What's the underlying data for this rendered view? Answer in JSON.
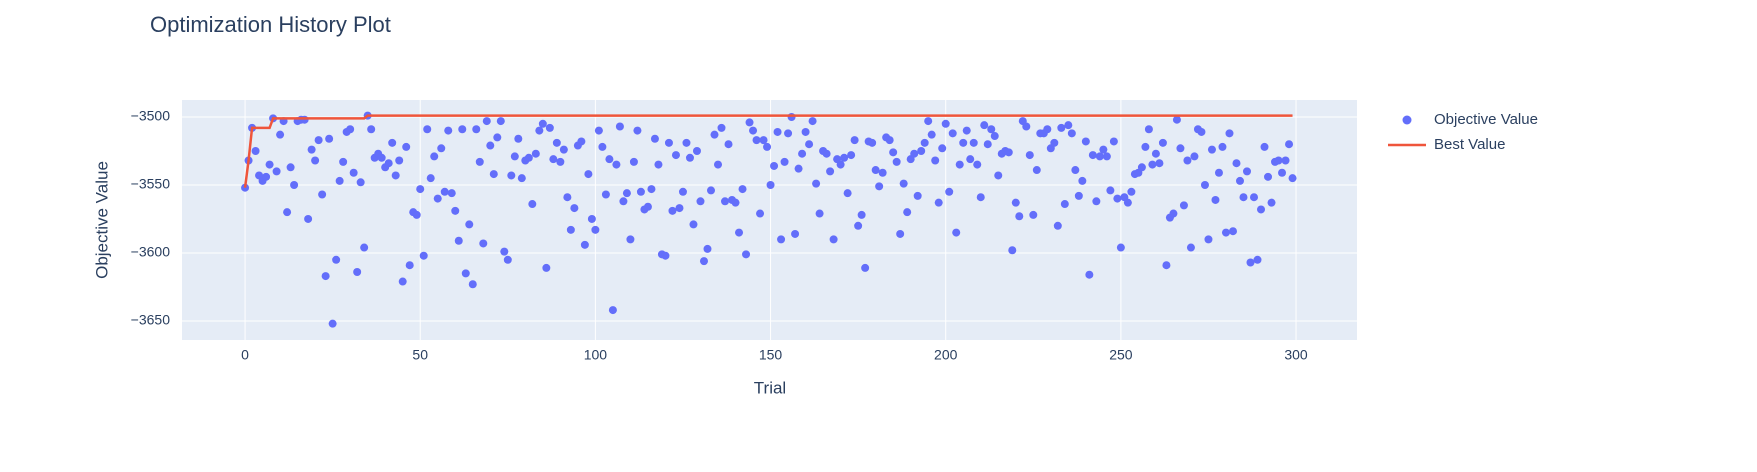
{
  "chart_data": {
    "type": "scatter",
    "title": "Optimization History Plot",
    "x_label": "Trial",
    "y_label": "Objective Value",
    "xlim": [
      -18,
      317.4
    ],
    "xticks": [
      0,
      50,
      100,
      150,
      200,
      250,
      300
    ],
    "ylim": [
      -3664,
      -3487.5
    ],
    "yticks": [
      {
        "value": -3650,
        "label": "−3650"
      },
      {
        "value": -3600,
        "label": "−3600"
      },
      {
        "value": -3550,
        "label": "−3550"
      },
      {
        "value": -3500,
        "label": "−3500"
      }
    ],
    "grid": true,
    "background": "#e5ecf6",
    "legend": "right",
    "series": [
      {
        "name": "Objective Value",
        "color": "#636efa",
        "mode": "markers",
        "x": [
          0,
          1,
          2,
          3,
          4,
          5,
          6,
          7,
          8,
          9,
          10,
          11,
          12,
          13,
          14,
          15,
          16,
          17,
          18,
          19,
          20,
          21,
          22,
          23,
          24,
          25,
          26,
          27,
          28,
          29,
          30,
          31,
          32,
          33,
          34,
          35,
          36,
          37,
          38,
          39,
          40,
          41,
          42,
          43,
          44,
          45,
          46,
          47,
          48,
          49,
          50,
          51,
          52,
          53,
          54,
          55,
          56,
          57,
          58,
          59,
          60,
          61,
          62,
          63,
          64,
          65,
          66,
          67,
          68,
          69,
          70,
          71,
          72,
          73,
          74,
          75,
          76,
          77,
          78,
          79,
          80,
          81,
          82,
          83,
          84,
          85,
          86,
          87,
          88,
          89,
          90,
          91,
          92,
          93,
          94,
          95,
          96,
          97,
          98,
          99,
          100,
          101,
          102,
          103,
          104,
          105,
          106,
          107,
          108,
          109,
          110,
          111,
          112,
          113,
          114,
          115,
          116,
          117,
          118,
          119,
          120,
          121,
          122,
          123,
          124,
          125,
          126,
          127,
          128,
          129,
          130,
          131,
          132,
          133,
          134,
          135,
          136,
          137,
          138,
          139,
          140,
          141,
          142,
          143,
          144,
          145,
          146,
          147,
          148,
          149,
          150,
          151,
          152,
          153,
          154,
          155,
          156,
          157,
          158,
          159,
          160,
          161,
          162,
          163,
          164,
          165,
          166,
          167,
          168,
          169,
          170,
          171,
          172,
          173,
          174,
          175,
          176,
          177,
          178,
          179,
          180,
          181,
          182,
          183,
          184,
          185,
          186,
          187,
          188,
          189,
          190,
          191,
          192,
          193,
          194,
          195,
          196,
          197,
          198,
          199,
          200,
          201,
          202,
          203,
          204,
          205,
          206,
          207,
          208,
          209,
          210,
          211,
          212,
          213,
          214,
          215,
          216,
          217,
          218,
          219,
          220,
          221,
          222,
          223,
          224,
          225,
          226,
          227,
          228,
          229,
          230,
          231,
          232,
          233,
          234,
          235,
          236,
          237,
          238,
          239,
          240,
          241,
          242,
          243,
          244,
          245,
          246,
          247,
          248,
          249,
          250,
          251,
          252,
          253,
          254,
          255,
          256,
          257,
          258,
          259,
          260,
          261,
          262,
          263,
          264,
          265,
          266,
          267,
          268,
          269,
          270,
          271,
          272,
          273,
          274,
          275,
          276,
          277,
          278,
          279,
          280,
          281,
          282,
          283,
          284,
          285,
          286,
          287,
          288,
          289,
          290,
          291,
          292,
          293,
          294,
          295,
          296,
          297,
          298,
          299
        ],
        "values": [
          -3552,
          -3532,
          -3508,
          -3525,
          -3543,
          -3547,
          -3544,
          -3535,
          -3501,
          -3540,
          -3513,
          -3503,
          -3570,
          -3537,
          -3550,
          -3503,
          -3502,
          -3502,
          -3575,
          -3524,
          -3532,
          -3517,
          -3557,
          -3617,
          -3516,
          -3652,
          -3605,
          -3547,
          -3533,
          -3511,
          -3509,
          -3541,
          -3614,
          -3548,
          -3596,
          -3499,
          -3509,
          -3530,
          -3527,
          -3530,
          -3537,
          -3534,
          -3519,
          -3543,
          -3532,
          -3621,
          -3522,
          -3609,
          -3570,
          -3572,
          -3553,
          -3602,
          -3509,
          -3545,
          -3529,
          -3560,
          -3523,
          -3555,
          -3510,
          -3556,
          -3569,
          -3591,
          -3509,
          -3615,
          -3579,
          -3623,
          -3509,
          -3533,
          -3593,
          -3503,
          -3521,
          -3542,
          -3515,
          -3503,
          -3599,
          -3605,
          -3543,
          -3529,
          -3516,
          -3545,
          -3532,
          -3530,
          -3564,
          -3527,
          -3510,
          -3505,
          -3611,
          -3508,
          -3531,
          -3519,
          -3533,
          -3524,
          -3559,
          -3583,
          -3567,
          -3521,
          -3518,
          -3594,
          -3542,
          -3575,
          -3583,
          -3510,
          -3522,
          -3557,
          -3531,
          -3642,
          -3535,
          -3507,
          -3562,
          -3556,
          -3590,
          -3533,
          -3510,
          -3555,
          -3568,
          -3566,
          -3553,
          -3516,
          -3535,
          -3601,
          -3602,
          -3519,
          -3569,
          -3528,
          -3567,
          -3555,
          -3519,
          -3530,
          -3579,
          -3525,
          -3562,
          -3606,
          -3597,
          -3554,
          -3513,
          -3535,
          -3508,
          -3562,
          -3520,
          -3561,
          -3563,
          -3585,
          -3553,
          -3601,
          -3504,
          -3510,
          -3517,
          -3571,
          -3517,
          -3522,
          -3550,
          -3536,
          -3511,
          -3590,
          -3533,
          -3512,
          -3500,
          -3586,
          -3538,
          -3527,
          -3511,
          -3520,
          -3503,
          -3549,
          -3571,
          -3525,
          -3527,
          -3540,
          -3590,
          -3531,
          -3535,
          -3530,
          -3556,
          -3528,
          -3517,
          -3580,
          -3572,
          -3611,
          -3518,
          -3519,
          -3539,
          -3551,
          -3541,
          -3515,
          -3517,
          -3526,
          -3533,
          -3586,
          -3549,
          -3570,
          -3531,
          -3527,
          -3558,
          -3525,
          -3519,
          -3503,
          -3513,
          -3532,
          -3563,
          -3523,
          -3505,
          -3555,
          -3512,
          -3585,
          -3535,
          -3519,
          -3510,
          -3531,
          -3519,
          -3535,
          -3559,
          -3506,
          -3520,
          -3509,
          -3514,
          -3543,
          -3527,
          -3525,
          -3526,
          -3598,
          -3563,
          -3573,
          -3503,
          -3507,
          -3528,
          -3572,
          -3539,
          -3512,
          -3512,
          -3509,
          -3523,
          -3519,
          -3580,
          -3508,
          -3564,
          -3506,
          -3512,
          -3539,
          -3558,
          -3547,
          -3518,
          -3616,
          -3528,
          -3562,
          -3529,
          -3524,
          -3529,
          -3554,
          -3518,
          -3560,
          -3596,
          -3559,
          -3563,
          -3555,
          -3542,
          -3541,
          -3537,
          -3522,
          -3509,
          -3535,
          -3527,
          -3534,
          -3519,
          -3609,
          -3574,
          -3571,
          -3502,
          -3523,
          -3565,
          -3532,
          -3596,
          -3529,
          -3509,
          -3511,
          -3550,
          -3590,
          -3524,
          -3561,
          -3541,
          -3522,
          -3585,
          -3512,
          -3584,
          -3534,
          -3547,
          -3559,
          -3540,
          -3607,
          -3559,
          -3605,
          -3568,
          -3522,
          -3544,
          -3563,
          -3533,
          -3532,
          -3541,
          -3532,
          -3520,
          -3545
        ]
      },
      {
        "name": "Best Value",
        "color": "#ef553b",
        "mode": "lines",
        "x": [
          0,
          1,
          2,
          7,
          8,
          34,
          35,
          299
        ],
        "values": [
          -3552,
          -3532,
          -3508,
          -3508,
          -3501,
          -3501,
          -3499,
          -3499
        ]
      }
    ]
  }
}
